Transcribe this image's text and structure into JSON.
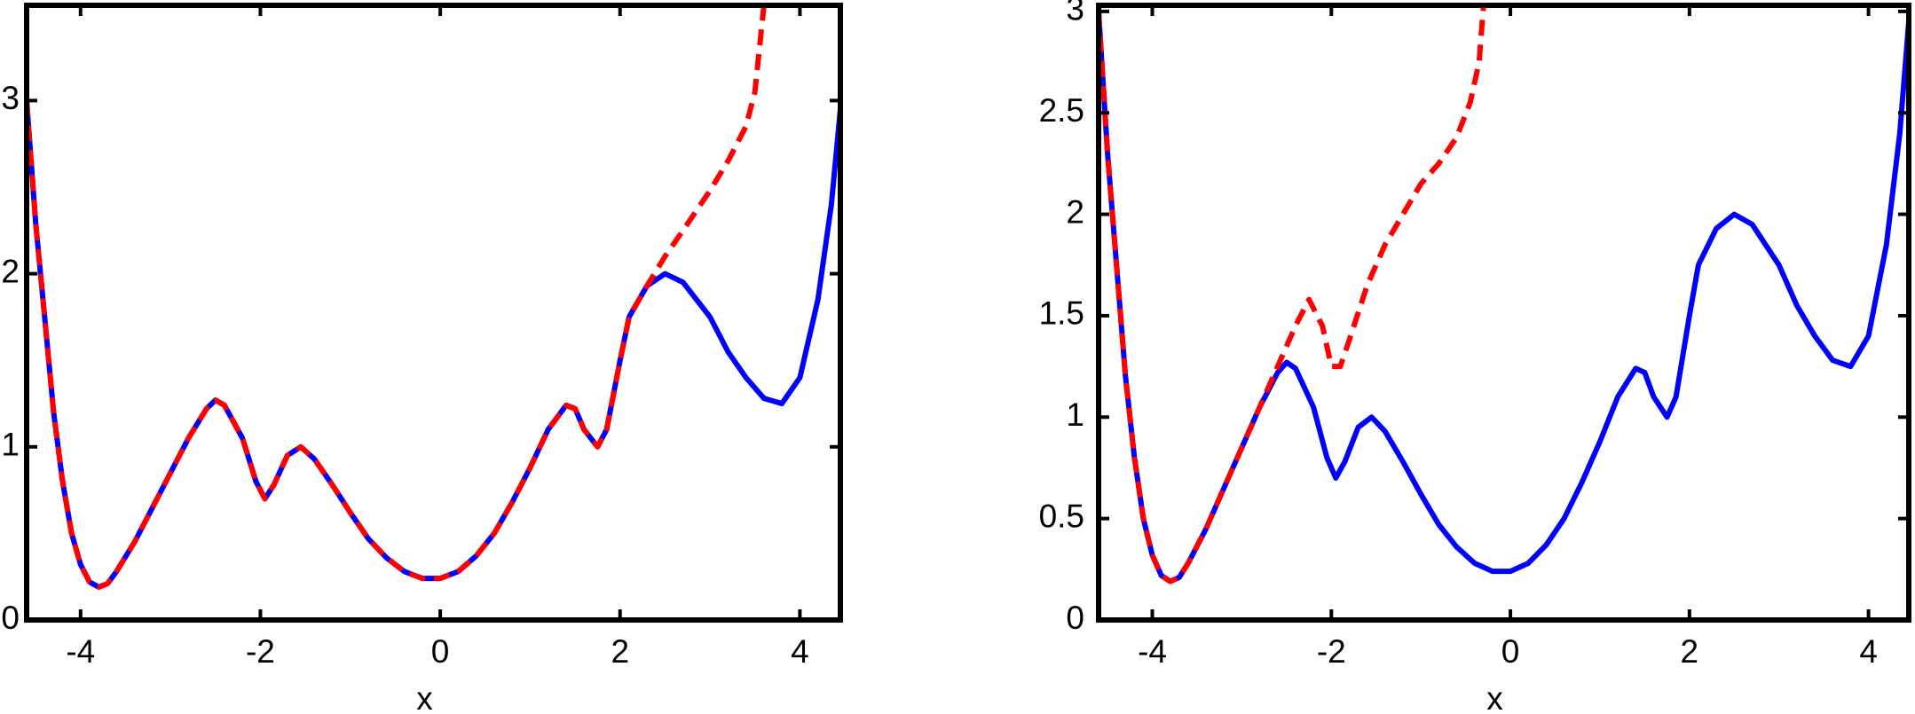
{
  "chart_data": [
    {
      "type": "line",
      "xlabel": "x",
      "xlim": [
        -4.6,
        4.45
      ],
      "ylim": [
        0,
        3.55
      ],
      "xticks": [
        -4,
        -2,
        0,
        2,
        4
      ],
      "yticks": [
        0,
        1,
        2,
        3
      ],
      "series": [
        {
          "color": "#0000ff",
          "linestyle": "solid",
          "x": [
            -4.6,
            -4.5,
            -4.4,
            -4.3,
            -4.2,
            -4.1,
            -4.0,
            -3.9,
            -3.8,
            -3.7,
            -3.6,
            -3.4,
            -3.2,
            -3.0,
            -2.8,
            -2.6,
            -2.5,
            -2.4,
            -2.2,
            -2.05,
            -1.95,
            -1.85,
            -1.7,
            -1.55,
            -1.4,
            -1.2,
            -1.0,
            -0.8,
            -0.6,
            -0.4,
            -0.2,
            0,
            0.2,
            0.4,
            0.6,
            0.8,
            1.0,
            1.2,
            1.4,
            1.5,
            1.6,
            1.75,
            1.85,
            2.0,
            2.1,
            2.3,
            2.5,
            2.7,
            3.0,
            3.2,
            3.4,
            3.6,
            3.8,
            4.0,
            4.2,
            4.35,
            4.45
          ],
          "values": [
            3.0,
            2.3,
            1.75,
            1.2,
            0.8,
            0.5,
            0.32,
            0.22,
            0.19,
            0.21,
            0.28,
            0.45,
            0.65,
            0.85,
            1.05,
            1.22,
            1.27,
            1.24,
            1.05,
            0.8,
            0.7,
            0.78,
            0.95,
            1.0,
            0.93,
            0.78,
            0.62,
            0.47,
            0.36,
            0.28,
            0.24,
            0.24,
            0.28,
            0.37,
            0.5,
            0.68,
            0.88,
            1.1,
            1.24,
            1.22,
            1.1,
            1.0,
            1.1,
            1.5,
            1.75,
            1.93,
            2.0,
            1.95,
            1.75,
            1.55,
            1.4,
            1.28,
            1.25,
            1.4,
            1.85,
            2.4,
            2.95
          ]
        },
        {
          "color": "#ff0000",
          "linestyle": "dashed",
          "x": [
            -4.6,
            -4.5,
            -4.4,
            -4.3,
            -4.2,
            -4.1,
            -4.0,
            -3.9,
            -3.8,
            -3.7,
            -3.6,
            -3.4,
            -3.2,
            -3.0,
            -2.8,
            -2.6,
            -2.5,
            -2.4,
            -2.2,
            -2.05,
            -1.95,
            -1.85,
            -1.7,
            -1.55,
            -1.4,
            -1.2,
            -1.0,
            -0.8,
            -0.6,
            -0.4,
            -0.2,
            0,
            0.2,
            0.4,
            0.6,
            0.8,
            1.0,
            1.2,
            1.4,
            1.5,
            1.6,
            1.75,
            1.85,
            2.0,
            2.1,
            2.3,
            2.5,
            2.7,
            3.0,
            3.2,
            3.4,
            3.5,
            3.55,
            3.6
          ],
          "values": [
            3.0,
            2.3,
            1.75,
            1.2,
            0.8,
            0.5,
            0.32,
            0.22,
            0.19,
            0.21,
            0.28,
            0.45,
            0.65,
            0.85,
            1.05,
            1.22,
            1.27,
            1.24,
            1.05,
            0.8,
            0.7,
            0.78,
            0.95,
            1.0,
            0.93,
            0.78,
            0.62,
            0.47,
            0.36,
            0.28,
            0.24,
            0.24,
            0.28,
            0.37,
            0.5,
            0.68,
            0.88,
            1.1,
            1.24,
            1.22,
            1.1,
            1.0,
            1.1,
            1.5,
            1.75,
            1.93,
            2.1,
            2.25,
            2.48,
            2.65,
            2.85,
            3.05,
            3.3,
            3.55
          ]
        }
      ]
    },
    {
      "type": "line",
      "xlabel": "x",
      "xlim": [
        -4.6,
        4.45
      ],
      "ylim": [
        0,
        3.03
      ],
      "xticks": [
        -4,
        -2,
        0,
        2,
        4
      ],
      "yticks": [
        0,
        0.5,
        1,
        1.5,
        2,
        2.5,
        3
      ],
      "series": [
        {
          "color": "#0000ff",
          "linestyle": "solid",
          "x": [
            -4.6,
            -4.5,
            -4.4,
            -4.3,
            -4.2,
            -4.1,
            -4.0,
            -3.9,
            -3.8,
            -3.7,
            -3.6,
            -3.4,
            -3.2,
            -3.0,
            -2.8,
            -2.6,
            -2.5,
            -2.4,
            -2.2,
            -2.05,
            -1.95,
            -1.85,
            -1.7,
            -1.55,
            -1.4,
            -1.2,
            -1.0,
            -0.8,
            -0.6,
            -0.4,
            -0.2,
            0,
            0.2,
            0.4,
            0.6,
            0.8,
            1.0,
            1.2,
            1.4,
            1.5,
            1.6,
            1.75,
            1.85,
            2.0,
            2.1,
            2.3,
            2.5,
            2.7,
            3.0,
            3.2,
            3.4,
            3.6,
            3.8,
            4.0,
            4.2,
            4.35,
            4.45
          ],
          "values": [
            3.0,
            2.3,
            1.75,
            1.2,
            0.8,
            0.5,
            0.32,
            0.22,
            0.19,
            0.21,
            0.28,
            0.45,
            0.65,
            0.85,
            1.05,
            1.22,
            1.27,
            1.24,
            1.05,
            0.8,
            0.7,
            0.78,
            0.95,
            1.0,
            0.93,
            0.78,
            0.62,
            0.47,
            0.36,
            0.28,
            0.24,
            0.24,
            0.28,
            0.37,
            0.5,
            0.68,
            0.88,
            1.1,
            1.24,
            1.22,
            1.1,
            1.0,
            1.1,
            1.5,
            1.75,
            1.93,
            2.0,
            1.95,
            1.75,
            1.55,
            1.4,
            1.28,
            1.25,
            1.4,
            1.85,
            2.4,
            2.95
          ]
        },
        {
          "color": "#ff0000",
          "linestyle": "dashed",
          "x": [
            -4.6,
            -4.5,
            -4.4,
            -4.3,
            -4.2,
            -4.1,
            -4.0,
            -3.9,
            -3.8,
            -3.7,
            -3.6,
            -3.4,
            -3.2,
            -3.0,
            -2.8,
            -2.6,
            -2.4,
            -2.25,
            -2.1,
            -2.0,
            -1.9,
            -1.8,
            -1.6,
            -1.4,
            -1.2,
            -1.0,
            -0.8,
            -0.6,
            -0.45,
            -0.35,
            -0.3
          ],
          "values": [
            3.0,
            2.3,
            1.75,
            1.2,
            0.8,
            0.5,
            0.32,
            0.22,
            0.19,
            0.21,
            0.28,
            0.45,
            0.65,
            0.85,
            1.05,
            1.25,
            1.45,
            1.58,
            1.45,
            1.25,
            1.25,
            1.38,
            1.65,
            1.85,
            2.0,
            2.15,
            2.25,
            2.38,
            2.55,
            2.75,
            3.03
          ]
        }
      ]
    }
  ]
}
